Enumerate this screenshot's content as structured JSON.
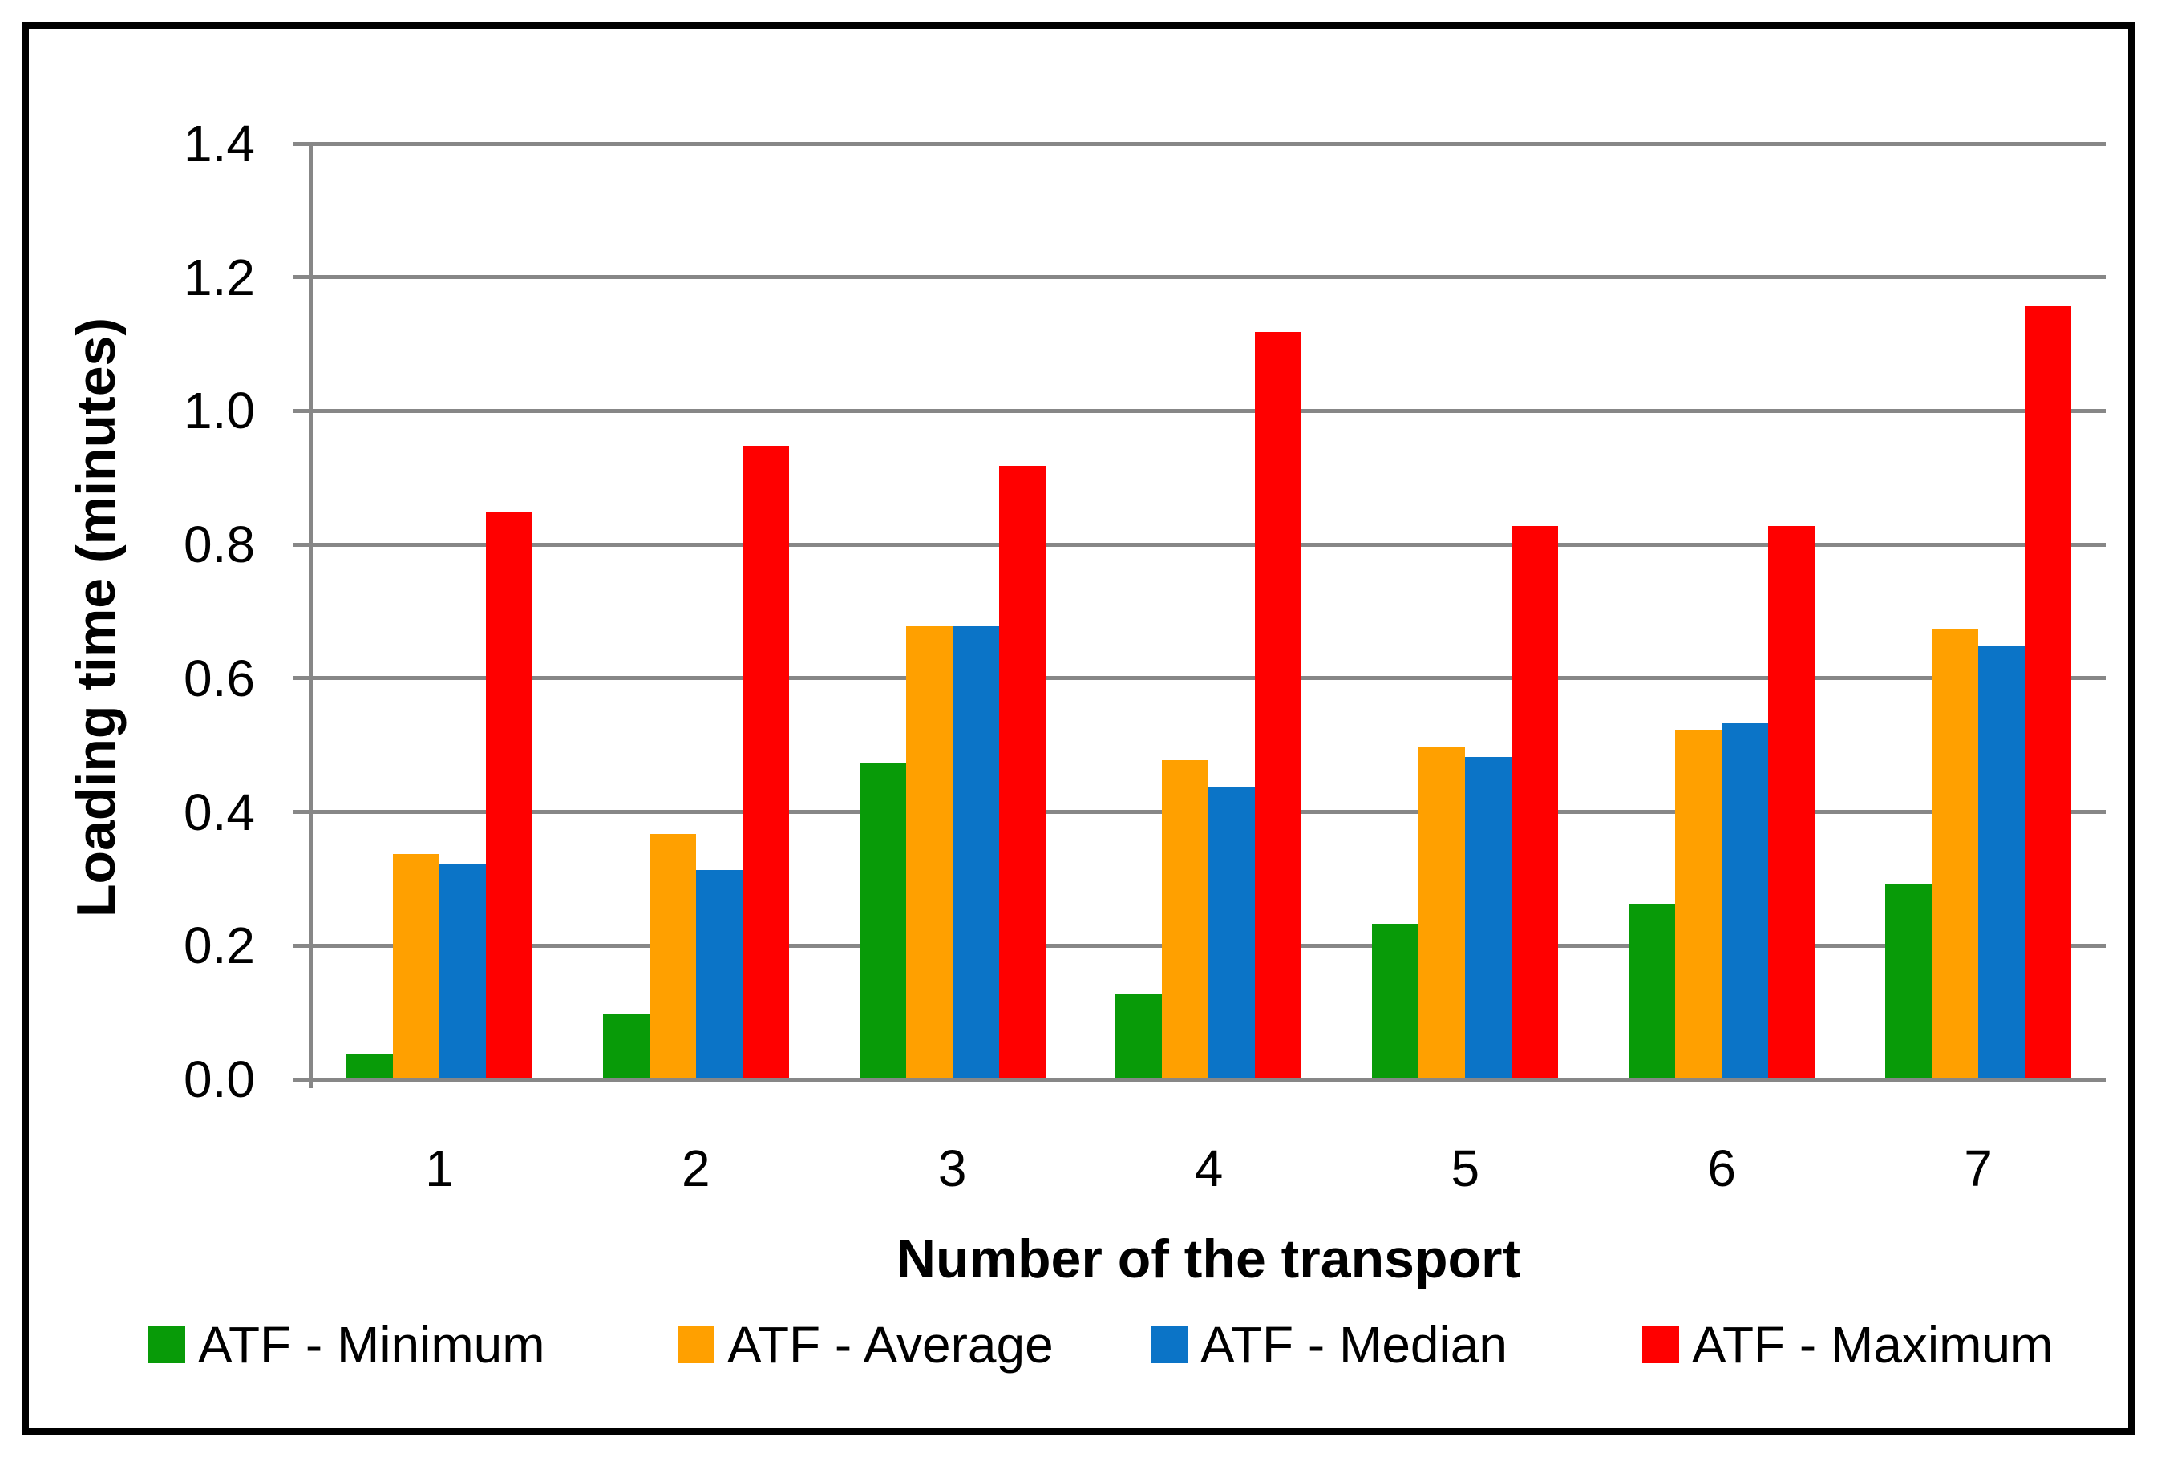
{
  "chart_data": {
    "type": "bar",
    "title": "",
    "xlabel": "Number of the transport",
    "ylabel": "Loading time (minutes)",
    "categories": [
      "1",
      "2",
      "3",
      "4",
      "5",
      "6",
      "7"
    ],
    "series": [
      {
        "name": "ATF - Minimum",
        "color": "#089B08",
        "values": [
          0.04,
          0.1,
          0.475,
          0.13,
          0.235,
          0.265,
          0.295
        ]
      },
      {
        "name": "ATF - Average",
        "color": "#FFA000",
        "values": [
          0.34,
          0.37,
          0.68,
          0.48,
          0.5,
          0.525,
          0.675
        ]
      },
      {
        "name": "ATF - Median",
        "color": "#0B74C7",
        "values": [
          0.325,
          0.315,
          0.68,
          0.44,
          0.485,
          0.535,
          0.65
        ]
      },
      {
        "name": "ATF - Maximum",
        "color": "#FF0000",
        "values": [
          0.85,
          0.95,
          0.92,
          1.12,
          0.83,
          0.83,
          1.16
        ]
      }
    ],
    "ylim": [
      0,
      1.4
    ],
    "ytick_step": 0.2,
    "yticks": [
      "0.0",
      "0.2",
      "0.4",
      "0.6",
      "0.8",
      "1.0",
      "1.2",
      "1.4"
    ],
    "grid": "horizontal",
    "legend_position": "bottom",
    "axis_color": "#878787",
    "frame_color": "#000000",
    "text_color": "#000000"
  }
}
